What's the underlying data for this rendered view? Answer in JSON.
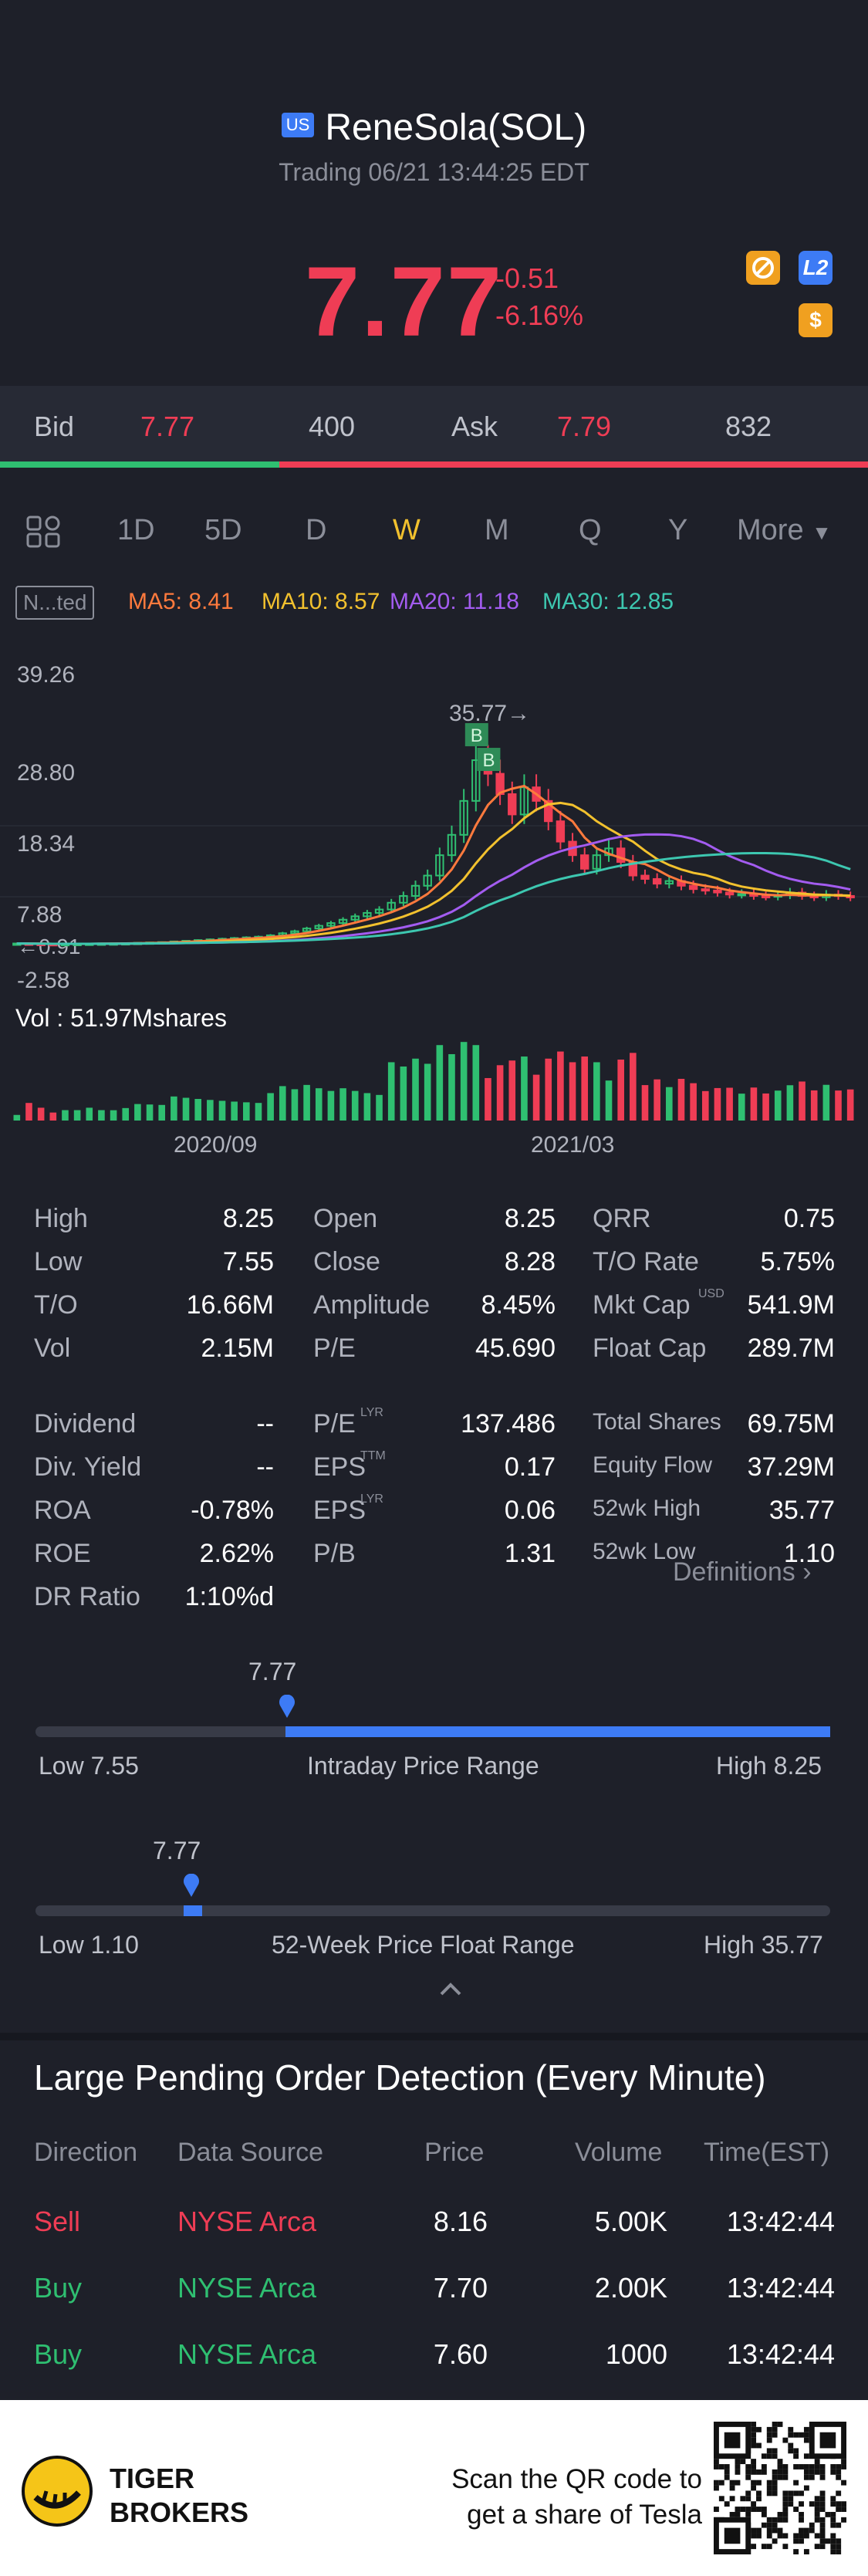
{
  "header": {
    "market_badge": "US",
    "title": "ReneSola(SOL)",
    "status": "Trading 06/21 13:44:25 EDT",
    "price": "7.77",
    "change": "-0.51",
    "change_pct": "-6.16%",
    "icons": [
      "no-trade-icon",
      "l2-icon",
      "dollar-icon"
    ]
  },
  "quote": {
    "bid_label": "Bid",
    "bid_price": "7.77",
    "bid_size": "400",
    "ask_label": "Ask",
    "ask_price": "7.79",
    "ask_size": "832"
  },
  "periods": {
    "items": [
      "1D",
      "5D",
      "D",
      "W",
      "M",
      "Q",
      "Y",
      "More"
    ],
    "active": "W"
  },
  "chart_header": {
    "adjust_label": "N...ted",
    "ma5": "MA5: 8.41",
    "ma10": "MA10: 8.57",
    "ma20": "MA20: 11.18",
    "ma30": "MA30: 12.85",
    "colors": {
      "ma5": "#ff7a3d",
      "ma10": "#f2c12e",
      "ma20": "#a35cf0",
      "ma30": "#3dc7b0",
      "up": "#2fbf71",
      "down": "#ef3d55"
    }
  },
  "chart_data": {
    "type": "candlestick",
    "y_ticks": [
      "39.26",
      "28.80",
      "18.34",
      "7.88",
      "-2.58"
    ],
    "ylim": [
      -2.58,
      39.26
    ],
    "x_ticks": [
      "2020/09",
      "2021/03"
    ],
    "high_annotation": "35.77",
    "low_annotation": "0.91",
    "trade_markers": [
      "B",
      "B"
    ],
    "volume_label": "Vol",
    "volume_value": ": 51.97Mshares",
    "close": [
      1.0,
      0.95,
      0.92,
      0.91,
      0.93,
      0.95,
      0.98,
      1.0,
      1.02,
      1.05,
      1.1,
      1.15,
      1.2,
      1.3,
      1.4,
      1.5,
      1.6,
      1.7,
      1.8,
      1.9,
      2.0,
      2.2,
      2.5,
      2.8,
      3.2,
      3.6,
      4.0,
      4.5,
      5.0,
      5.5,
      6.0,
      7.0,
      8.0,
      9.5,
      11.0,
      14.0,
      17.0,
      22.0,
      28.0,
      26.0,
      23.0,
      20.0,
      24.0,
      22.0,
      19.0,
      16.0,
      14.0,
      12.0,
      14.0,
      15.0,
      13.0,
      11.0,
      10.5,
      9.8,
      10.2,
      9.5,
      9.0,
      8.8,
      8.5,
      8.2,
      8.3,
      8.0,
      7.9,
      8.1,
      8.5,
      8.0,
      7.8,
      8.2,
      8.0,
      7.77
    ]
  },
  "stats": {
    "col1": [
      {
        "label": "High",
        "value": "8.25"
      },
      {
        "label": "Low",
        "value": "7.55"
      },
      {
        "label": "T/O",
        "value": "16.66M"
      },
      {
        "label": "Vol",
        "value": "2.15M"
      },
      {
        "label": "Dividend",
        "value": "--"
      },
      {
        "label": "Div. Yield",
        "value": "--"
      },
      {
        "label": "ROA",
        "value": "-0.78%"
      },
      {
        "label": "ROE",
        "value": "2.62%"
      },
      {
        "label": "DR Ratio",
        "value": "1:10%d"
      }
    ],
    "col2": [
      {
        "label": "Open",
        "value": "8.25"
      },
      {
        "label": "Close",
        "value": "8.28"
      },
      {
        "label": "Amplitude",
        "value": "8.45%"
      },
      {
        "label": "P/E",
        "value": "45.690"
      },
      {
        "label": "P/E",
        "sup": "LYR",
        "value": "137.486"
      },
      {
        "label": "EPS",
        "sup": "TTM",
        "value": "0.17"
      },
      {
        "label": "EPS",
        "sup": "LYR",
        "value": "0.06"
      },
      {
        "label": "P/B",
        "value": "1.31"
      }
    ],
    "col3": [
      {
        "label": "QRR",
        "value": "0.75"
      },
      {
        "label": "T/O Rate",
        "value": "5.75%"
      },
      {
        "label": "Mkt Cap",
        "sup": "USD",
        "value": "541.9M"
      },
      {
        "label": "Float Cap",
        "value": "289.7M"
      },
      {
        "label": "Total Shares",
        "value": "69.75M"
      },
      {
        "label": "Equity Flow",
        "value": "37.29M"
      },
      {
        "label": "52wk High",
        "value": "35.77"
      },
      {
        "label": "52wk Low",
        "value": "1.10"
      }
    ],
    "definitions": "Definitions"
  },
  "intraday_range": {
    "current": "7.77",
    "low": "Low 7.55",
    "title": "Intraday Price Range",
    "high": "High 8.25",
    "position": 0.31
  },
  "week52_range": {
    "current": "7.77",
    "low": "Low 1.10",
    "title": "52-Week Price Float Range",
    "high": "High 35.77",
    "position": 0.19
  },
  "orders": {
    "title": "Large Pending Order Detection (Every Minute)",
    "headers": [
      "Direction",
      "Data Source",
      "Price",
      "Volume",
      "Time(EST)"
    ],
    "rows": [
      {
        "direction": "Sell",
        "source": "NYSE Arca",
        "price": "8.16",
        "volume": "5.00K",
        "time": "13:42:44",
        "color": "#ef3d55"
      },
      {
        "direction": "Buy",
        "source": "NYSE Arca",
        "price": "7.70",
        "volume": "2.00K",
        "time": "13:42:44",
        "color": "#2fbf71"
      },
      {
        "direction": "Buy",
        "source": "NYSE Arca",
        "price": "7.60",
        "volume": "1000",
        "time": "13:42:44",
        "color": "#2fbf71"
      }
    ]
  },
  "footer": {
    "brand_line1": "TIGER",
    "brand_line2": "BROKERS",
    "cta_line1": "Scan the QR code to",
    "cta_line2": "get a share of Tesla"
  }
}
